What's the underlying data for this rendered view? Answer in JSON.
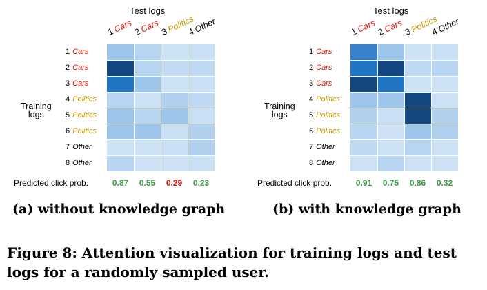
{
  "colors": {
    "cars": "#e0130b",
    "politics": "#c39a00",
    "other": "#000000",
    "green": "#3b9b43",
    "red": "#e0130b"
  },
  "axes": {
    "test_title": "Test logs",
    "training_title_line1": "Training",
    "training_title_line2": "logs",
    "prob_label": "Predicted click prob."
  },
  "test_logs": [
    {
      "num": "1",
      "cat": "Cars",
      "type": "cars"
    },
    {
      "num": "2",
      "cat": "Cars",
      "type": "cars"
    },
    {
      "num": "3",
      "cat": "Politics",
      "type": "politics"
    },
    {
      "num": "4",
      "cat": "Other",
      "type": "other"
    }
  ],
  "training_logs": [
    {
      "num": "1",
      "cat": "Cars",
      "type": "cars"
    },
    {
      "num": "2",
      "cat": "Cars",
      "type": "cars"
    },
    {
      "num": "3",
      "cat": "Cars",
      "type": "cars"
    },
    {
      "num": "4",
      "cat": "Politics",
      "type": "politics"
    },
    {
      "num": "5",
      "cat": "Politics",
      "type": "politics"
    },
    {
      "num": "6",
      "cat": "Politics",
      "type": "politics"
    },
    {
      "num": "7",
      "cat": "Other",
      "type": "other"
    },
    {
      "num": "8",
      "cat": "Other",
      "type": "other"
    }
  ],
  "panels": [
    {
      "subcaption": "(a) without knowledge graph",
      "probs": [
        {
          "value": "0.87",
          "color": "green"
        },
        {
          "value": "0.55",
          "color": "green"
        },
        {
          "value": "0.29",
          "color": "red"
        },
        {
          "value": "0.23",
          "color": "green"
        }
      ]
    },
    {
      "subcaption": "(b) with knowledge graph",
      "probs": [
        {
          "value": "0.91",
          "color": "green"
        },
        {
          "value": "0.75",
          "color": "green"
        },
        {
          "value": "0.86",
          "color": "green"
        },
        {
          "value": "0.32",
          "color": "green"
        }
      ]
    }
  ],
  "chart_data": [
    {
      "type": "heatmap",
      "title": "(a) without knowledge graph",
      "xlabel": "Test logs",
      "ylabel": "Training logs",
      "x_categories": [
        "1 Cars",
        "2 Cars",
        "3 Politics",
        "4 Other"
      ],
      "y_categories": [
        "1 Cars",
        "2 Cars",
        "3 Cars",
        "4 Politics",
        "5 Politics",
        "6 Politics",
        "7 Other",
        "8 Other"
      ],
      "values": [
        [
          0.45,
          0.3,
          0.15,
          0.18
        ],
        [
          0.98,
          0.3,
          0.22,
          0.25
        ],
        [
          0.8,
          0.45,
          0.15,
          0.18
        ],
        [
          0.3,
          0.15,
          0.35,
          0.25
        ],
        [
          0.45,
          0.3,
          0.45,
          0.18
        ],
        [
          0.45,
          0.45,
          0.18,
          0.35
        ],
        [
          0.15,
          0.15,
          0.18,
          0.35
        ],
        [
          0.3,
          0.15,
          0.15,
          0.18
        ]
      ],
      "predicted_click_prob": [
        0.87,
        0.55,
        0.29,
        0.23
      ]
    },
    {
      "type": "heatmap",
      "title": "(b) with knowledge graph",
      "xlabel": "Test logs",
      "ylabel": "Training logs",
      "x_categories": [
        "1 Cars",
        "2 Cars",
        "3 Politics",
        "4 Other"
      ],
      "y_categories": [
        "1 Cars",
        "2 Cars",
        "3 Cars",
        "4 Politics",
        "5 Politics",
        "6 Politics",
        "7 Other",
        "8 Other"
      ],
      "values": [
        [
          0.75,
          0.45,
          0.15,
          0.18
        ],
        [
          0.8,
          0.98,
          0.25,
          0.3
        ],
        [
          0.98,
          0.8,
          0.15,
          0.15
        ],
        [
          0.45,
          0.45,
          0.98,
          0.15
        ],
        [
          0.35,
          0.18,
          0.98,
          0.35
        ],
        [
          0.3,
          0.15,
          0.45,
          0.35
        ],
        [
          0.25,
          0.15,
          0.3,
          0.15
        ],
        [
          0.15,
          0.3,
          0.15,
          0.15
        ]
      ],
      "predicted_click_prob": [
        0.91,
        0.75,
        0.86,
        0.32
      ]
    }
  ],
  "caption": "Figure 8: Attention visualization for training logs and test logs for a randomly sampled user."
}
